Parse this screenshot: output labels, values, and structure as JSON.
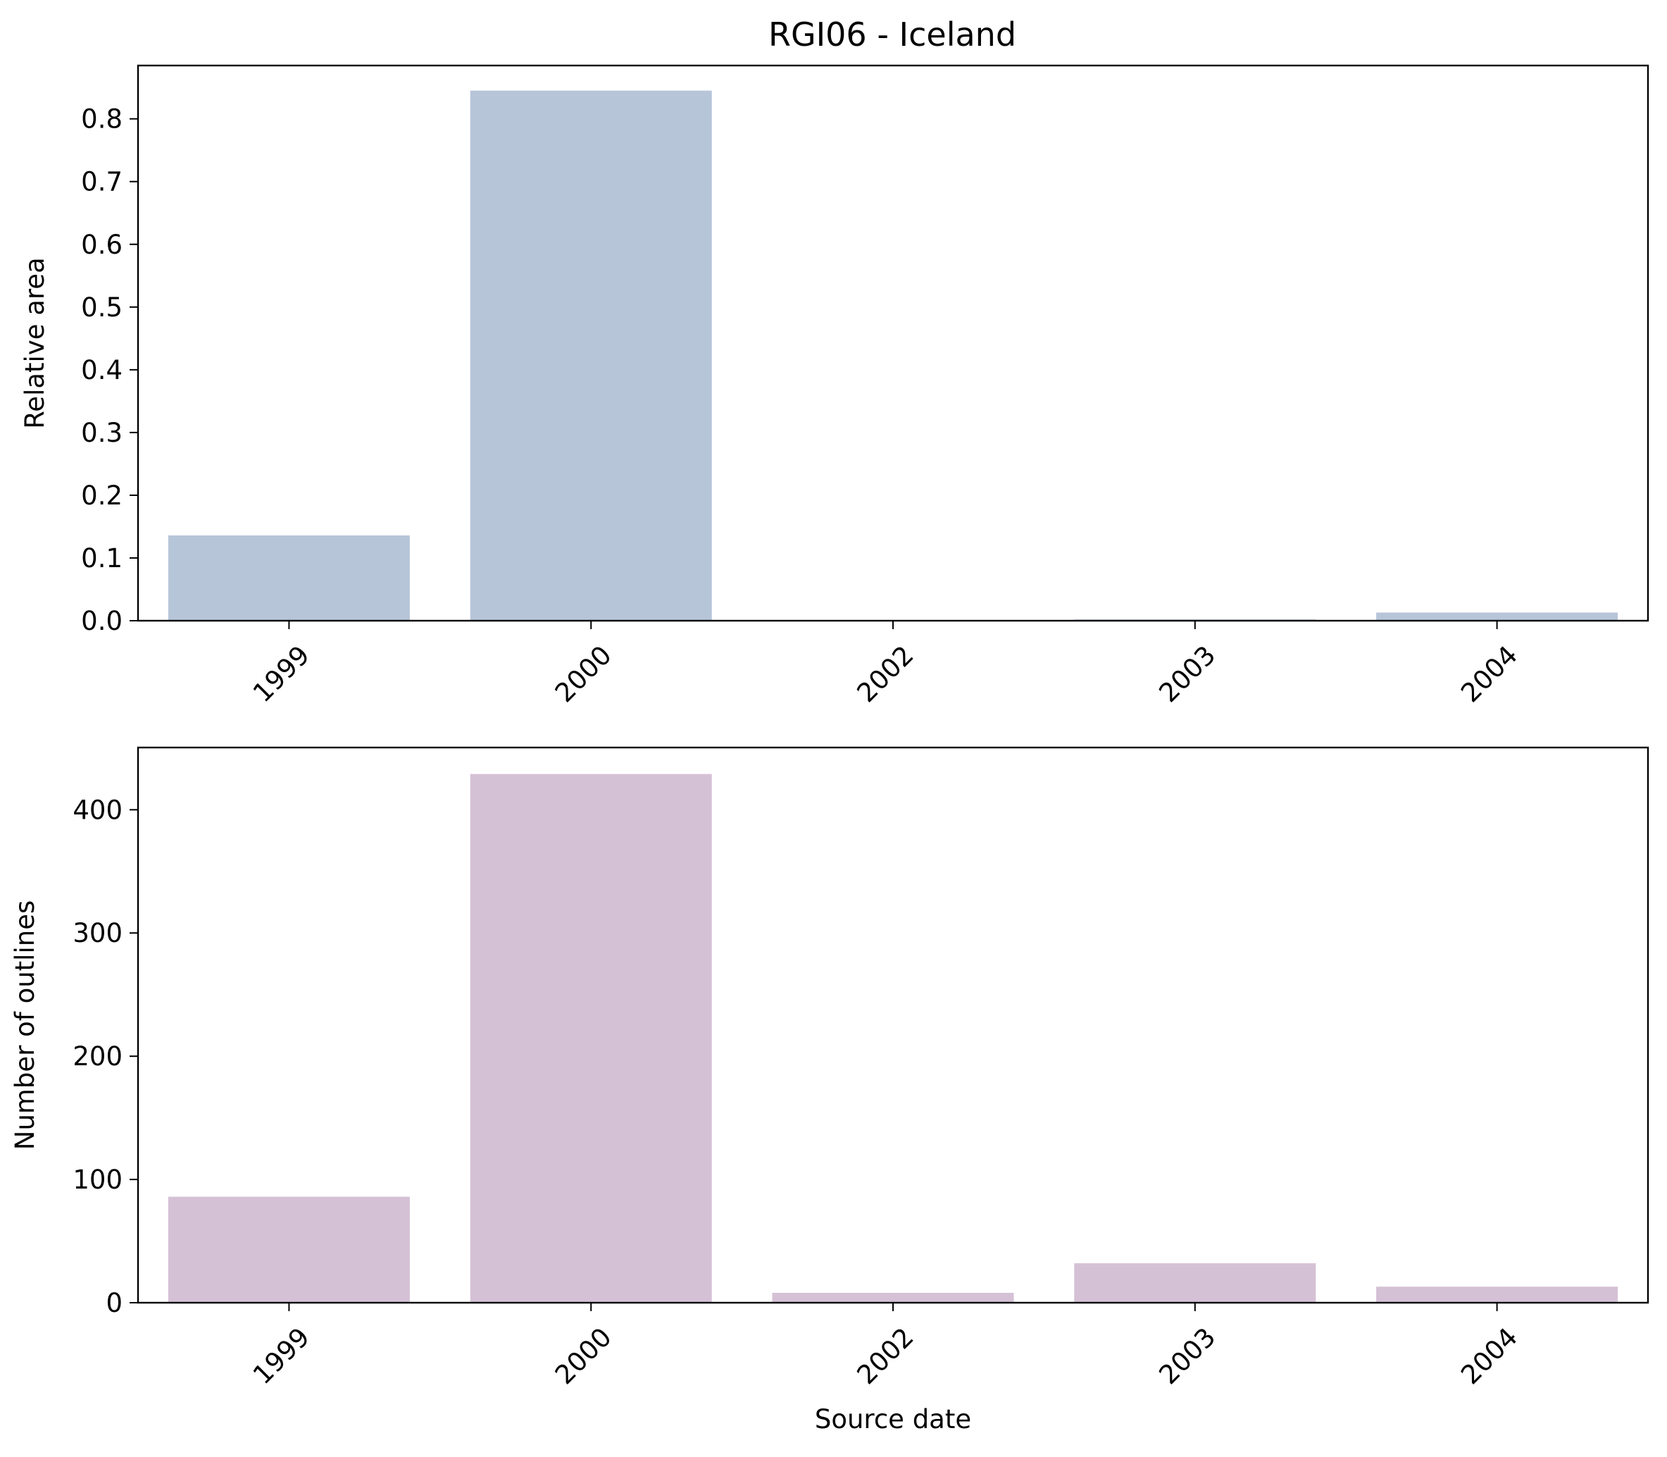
{
  "figure": {
    "title": "RGI06 - Iceland"
  },
  "chart_data": [
    {
      "type": "bar",
      "title": "RGI06 - Iceland",
      "categories": [
        "1999",
        "2000",
        "2002",
        "2003",
        "2004"
      ],
      "values": [
        0.136,
        0.845,
        0.0003,
        0.002,
        0.013
      ],
      "xlabel": "",
      "ylabel": "Relative area",
      "ylim": [
        0,
        0.885
      ],
      "yticks": [
        0.0,
        0.1,
        0.2,
        0.3,
        0.4,
        0.5,
        0.6,
        0.7,
        0.8
      ],
      "ytick_labels": [
        "0.0",
        "0.1",
        "0.2",
        "0.3",
        "0.4",
        "0.5",
        "0.6",
        "0.7",
        "0.8"
      ],
      "grid": false,
      "color": "#b7c5d9"
    },
    {
      "type": "bar",
      "title": "",
      "categories": [
        "1999",
        "2000",
        "2002",
        "2003",
        "2004"
      ],
      "values": [
        86,
        429,
        8,
        32,
        13
      ],
      "xlabel": "Source date",
      "ylabel": "Number of outlines",
      "ylim": [
        0,
        450.5
      ],
      "yticks": [
        0,
        100,
        200,
        300,
        400
      ],
      "ytick_labels": [
        "0",
        "100",
        "200",
        "300",
        "400"
      ],
      "grid": false,
      "color": "#d5c1d6"
    }
  ]
}
